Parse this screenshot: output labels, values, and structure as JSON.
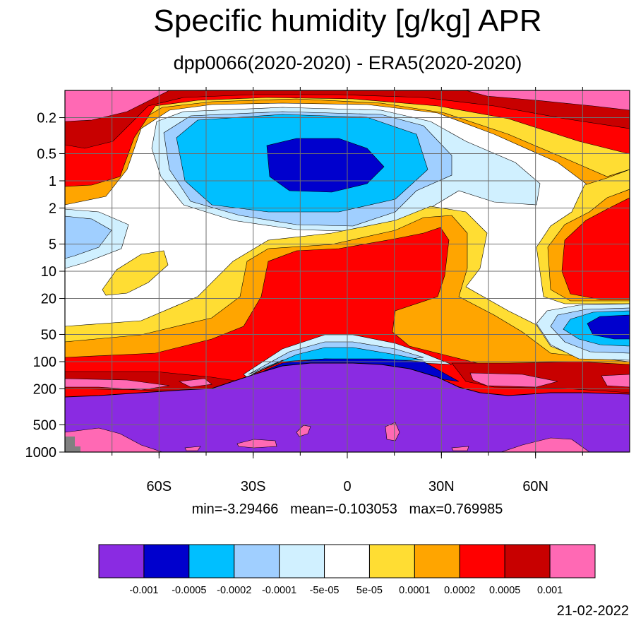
{
  "title": "Specific humidity [g/kg] APR",
  "subtitle": "dpp0066(2020-2020) - ERA5(2020-2020)",
  "stats": "min=-3.29466   mean=-0.103053   max=0.769985",
  "date": "21-02-2022",
  "chart_data": {
    "type": "heatmap",
    "title": "Specific humidity [g/kg] APR",
    "subtitle": "dpp0066(2020-2020) - ERA5(2020-2020)",
    "x_axis": {
      "range": [
        -90,
        90
      ],
      "ticks": [
        -60,
        -30,
        0,
        30,
        60
      ],
      "tick_labels": [
        "60S",
        "30S",
        "0",
        "30N",
        "60N"
      ]
    },
    "y_axis": {
      "scale": "log",
      "reversed": true,
      "range": [
        0.1,
        1000
      ],
      "ticks": [
        0.2,
        0.5,
        1,
        2,
        5,
        10,
        20,
        50,
        100,
        200,
        500,
        1000
      ],
      "tick_labels": [
        "0.2",
        "0.5",
        "1",
        "2",
        "5",
        "10",
        "20",
        "50",
        "100",
        "200",
        "500",
        "1000"
      ]
    },
    "grid": true,
    "colorbar": {
      "levels": [
        "-0.001",
        "-0.0005",
        "-0.0002",
        "-0.0001",
        "-5e-05",
        "5e-05",
        "0.0001",
        "0.0002",
        "0.0005",
        "0.001"
      ],
      "colors": [
        "#8a2be2",
        "#0000cd",
        "#00bfff",
        "#a0cfff",
        "#d0f0ff",
        "#ffffff",
        "#ffdd33",
        "#ffa500",
        "#ff0000",
        "#c80000",
        "#ff69b4"
      ]
    },
    "statistics": {
      "min": -3.29466,
      "mean": -0.103053,
      "max": 0.769985
    }
  }
}
